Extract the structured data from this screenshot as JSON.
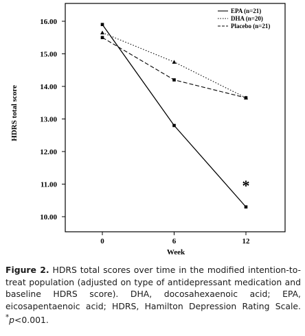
{
  "chart_data": {
    "type": "line",
    "x": [
      0,
      6,
      12
    ],
    "xticks": [
      "0",
      "6",
      "12"
    ],
    "xlabel": "Week",
    "ylabel": "HDRS total score",
    "ylim": [
      9.7,
      16.4
    ],
    "yticks": [
      "10.00",
      "11.00",
      "12.00",
      "13.00",
      "14.00",
      "15.00",
      "16.00"
    ],
    "series": [
      {
        "name": "EPA (n=21)",
        "values": [
          15.9,
          12.8,
          10.3
        ],
        "style": "solid",
        "marker": "square"
      },
      {
        "name": "DHA (n=20)",
        "values": [
          15.65,
          14.75,
          13.65
        ],
        "style": "dotted",
        "marker": "triangle"
      },
      {
        "name": "Placebo (n=21)",
        "values": [
          15.5,
          14.2,
          13.65
        ],
        "style": "dashed",
        "marker": "square"
      }
    ],
    "annotation": {
      "text": "*",
      "x": 12,
      "y": 11.1
    },
    "legend_position": "top-right",
    "grid": false
  },
  "caption": {
    "label": "Figure 2.",
    "text_before": "HDRS total scores over time in the modified intention-to-treat population (adjusted on type of antidepressant medication and baseline HDRS score). DHA, docosahexaenoic acid; EPA, eicosapentaenoic acid; HDRS, Hamilton Depression Rating Scale. ",
    "star": "*",
    "p": "p",
    "text_after": "<0.001."
  }
}
